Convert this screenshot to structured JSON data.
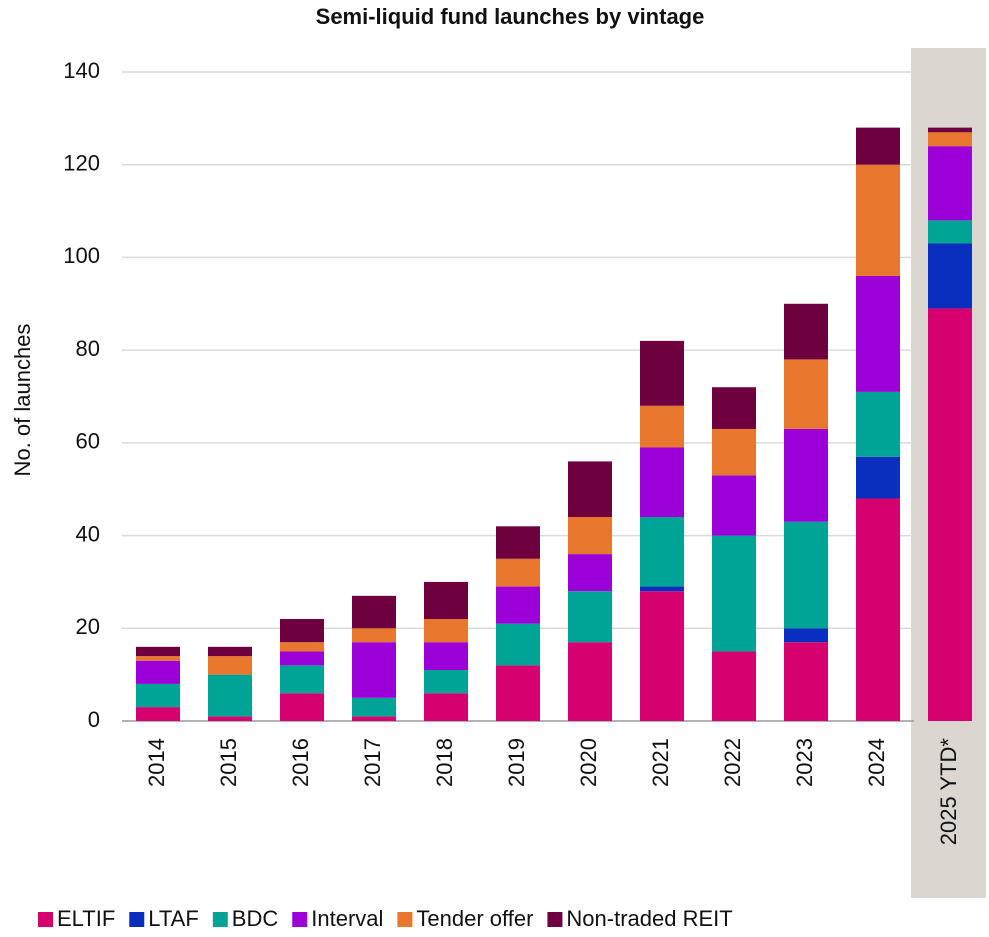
{
  "chart_data": {
    "type": "bar",
    "stacked": true,
    "title": "Semi-liquid fund launches by vintage",
    "y_label": "No. of launches",
    "categories": [
      "2014",
      "2015",
      "2016",
      "2017",
      "2018",
      "2019",
      "2020",
      "2021",
      "2022",
      "2023",
      "2024",
      "2025 YTD*"
    ],
    "series": [
      {
        "name": "ELTIF",
        "color": "#d6006f",
        "values": [
          3,
          1,
          6,
          1,
          6,
          12,
          17,
          28,
          15,
          17,
          48,
          89
        ]
      },
      {
        "name": "LTAF",
        "color": "#0a2ebf",
        "values": [
          0,
          0,
          0,
          0,
          0,
          0,
          0,
          1,
          0,
          3,
          9,
          14
        ]
      },
      {
        "name": "BDC",
        "color": "#00a497",
        "values": [
          5,
          9,
          6,
          4,
          5,
          9,
          11,
          15,
          25,
          23,
          14,
          5
        ]
      },
      {
        "name": "Interval",
        "color": "#9b00d9",
        "values": [
          5,
          0,
          3,
          12,
          6,
          8,
          8,
          15,
          13,
          20,
          25,
          16
        ]
      },
      {
        "name": "Tender offer",
        "color": "#e8762d",
        "values": [
          1,
          4,
          2,
          3,
          5,
          6,
          8,
          9,
          10,
          15,
          24,
          3
        ]
      },
      {
        "name": "Non-traded REIT",
        "color": "#6e0040",
        "values": [
          2,
          2,
          5,
          7,
          8,
          7,
          12,
          14,
          9,
          12,
          8,
          1
        ]
      }
    ],
    "ylim": [
      0,
      140
    ],
    "yticks": [
      0,
      20,
      40,
      60,
      80,
      100,
      120,
      140
    ],
    "grid": true,
    "legend": "bottom"
  }
}
